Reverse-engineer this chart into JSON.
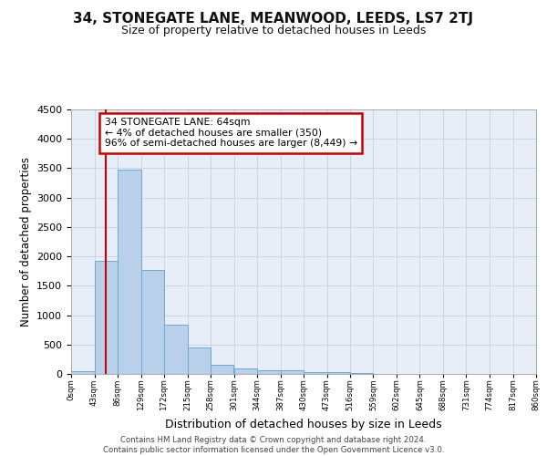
{
  "title": "34, STONEGATE LANE, MEANWOOD, LEEDS, LS7 2TJ",
  "subtitle": "Size of property relative to detached houses in Leeds",
  "xlabel": "Distribution of detached houses by size in Leeds",
  "ylabel": "Number of detached properties",
  "footer_line1": "Contains HM Land Registry data © Crown copyright and database right 2024.",
  "footer_line2": "Contains public sector information licensed under the Open Government Licence v3.0.",
  "bin_labels": [
    "0sqm",
    "43sqm",
    "86sqm",
    "129sqm",
    "172sqm",
    "215sqm",
    "258sqm",
    "301sqm",
    "344sqm",
    "387sqm",
    "430sqm",
    "473sqm",
    "516sqm",
    "559sqm",
    "602sqm",
    "645sqm",
    "688sqm",
    "731sqm",
    "774sqm",
    "817sqm",
    "860sqm"
  ],
  "bar_values": [
    43,
    1920,
    3480,
    1770,
    840,
    450,
    155,
    95,
    60,
    55,
    35,
    30,
    10,
    5,
    3,
    2,
    1,
    1,
    0,
    0
  ],
  "bar_color": "#b8d0ea",
  "bar_edge_color": "#6aaad4",
  "grid_color": "#c8d4e8",
  "bg_color": "#e8eef8",
  "property_line_x": 64,
  "property_line_color": "#cc0000",
  "annotation_line1": "34 STONEGATE LANE: 64sqm",
  "annotation_line2": "← 4% of detached houses are smaller (350)",
  "annotation_line3": "96% of semi-detached houses are larger (8,449) →",
  "annotation_box_color": "#cc0000",
  "ylim": [
    0,
    4500
  ],
  "bin_width": 43,
  "title_fontsize": 11,
  "subtitle_fontsize": 9
}
